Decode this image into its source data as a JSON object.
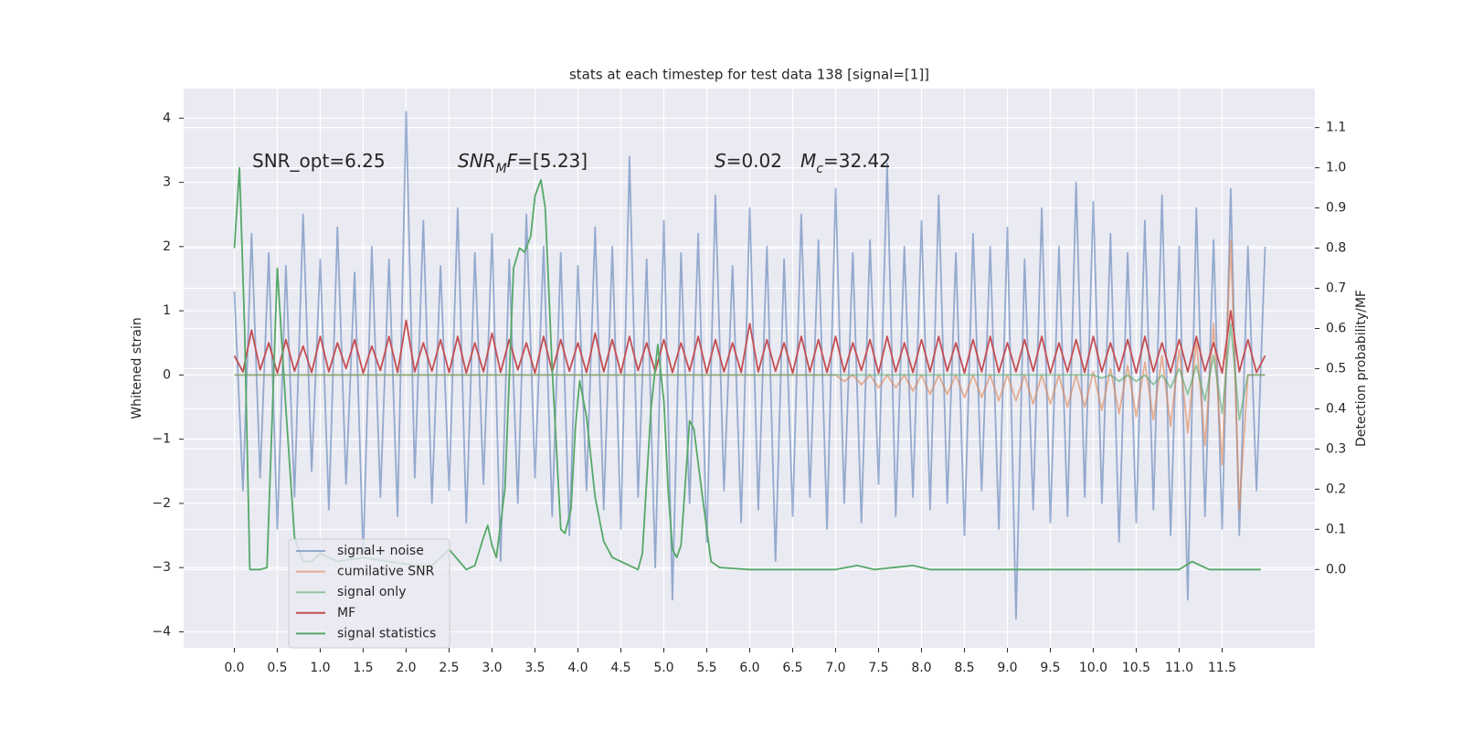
{
  "chart_data": {
    "type": "line",
    "title": "stats at each timestep for test data 138 [signal=[1]]",
    "ylabel": "Whitened strain",
    "y2label": "Detection probability/MF",
    "legend": "lower left",
    "grid": true,
    "annotations": [
      [
        {
          "text": "SNR_opt=6.25"
        }
      ],
      [
        {
          "text": "SNR",
          "italic": true
        },
        {
          "text": "M",
          "italic": true,
          "sub": true
        },
        {
          "text": "F",
          "italic": true
        },
        {
          "text": "=[5.23]"
        }
      ],
      [
        {
          "text": "S",
          "italic": true
        },
        {
          "text": "=0.02"
        }
      ],
      [
        {
          "text": "M",
          "italic": true
        },
        {
          "text": "c",
          "italic": true,
          "sub": true
        },
        {
          "text": "=32.42"
        }
      ]
    ],
    "xlim": [
      -0.59,
      12.58
    ],
    "ylim": [
      -4.25,
      4.46
    ],
    "y2lim": [
      -0.195,
      1.197
    ],
    "xticks": [
      {
        "value": 0,
        "label": "0.0"
      },
      {
        "value": 0.5,
        "label": "0.5"
      },
      {
        "value": 1,
        "label": "1.0"
      },
      {
        "value": 1.5,
        "label": "1.5"
      },
      {
        "value": 2,
        "label": "2.0"
      },
      {
        "value": 2.5,
        "label": "2.5"
      },
      {
        "value": 3,
        "label": "3.0"
      },
      {
        "value": 3.5,
        "label": "3.5"
      },
      {
        "value": 4,
        "label": "4.0"
      },
      {
        "value": 4.5,
        "label": "4.5"
      },
      {
        "value": 5,
        "label": "5.0"
      },
      {
        "value": 5.5,
        "label": "5.5"
      },
      {
        "value": 6,
        "label": "6.0"
      },
      {
        "value": 6.5,
        "label": "6.5"
      },
      {
        "value": 7,
        "label": "7.0"
      },
      {
        "value": 7.5,
        "label": "7.5"
      },
      {
        "value": 8,
        "label": "8.0"
      },
      {
        "value": 8.5,
        "label": "8.5"
      },
      {
        "value": 9,
        "label": "9.0"
      },
      {
        "value": 9.5,
        "label": "9.5"
      },
      {
        "value": 10,
        "label": "10.0"
      },
      {
        "value": 10.5,
        "label": "10.5"
      },
      {
        "value": 11,
        "label": "11.0"
      },
      {
        "value": 11.5,
        "label": "11.5"
      }
    ],
    "yticks": [
      {
        "value": -4,
        "label": "−4"
      },
      {
        "value": -3,
        "label": "−3"
      },
      {
        "value": -2,
        "label": "−2"
      },
      {
        "value": -1,
        "label": "−1"
      },
      0,
      1,
      2,
      3,
      4
    ],
    "y2ticks": [
      {
        "value": 0,
        "label": "0.0"
      },
      {
        "value": 0.1,
        "label": "0.1"
      },
      {
        "value": 0.2,
        "label": "0.2"
      },
      {
        "value": 0.3,
        "label": "0.3"
      },
      {
        "value": 0.4,
        "label": "0.4"
      },
      {
        "value": 0.5,
        "label": "0.5"
      },
      {
        "value": 0.6,
        "label": "0.6"
      },
      {
        "value": 0.7,
        "label": "0.7"
      },
      {
        "value": 0.8,
        "label": "0.8"
      },
      {
        "value": 0.9,
        "label": "0.9"
      },
      {
        "value": 1,
        "label": "1.0"
      },
      {
        "value": 1.1,
        "label": "1.1"
      }
    ],
    "x": [
      0,
      0.1,
      0.2,
      0.3,
      0.4,
      0.5,
      0.6,
      0.7,
      0.8,
      0.9,
      1,
      1.1,
      1.2,
      1.3,
      1.4,
      1.5,
      1.6,
      1.7,
      1.8,
      1.9,
      2,
      2.1,
      2.2,
      2.3,
      2.4,
      2.5,
      2.6,
      2.7,
      2.8,
      2.9,
      3,
      3.1,
      3.2,
      3.3,
      3.4,
      3.5,
      3.6,
      3.7,
      3.8,
      3.9,
      4,
      4.1,
      4.2,
      4.3,
      4.4,
      4.5,
      4.6,
      4.7,
      4.8,
      4.9,
      5,
      5.1,
      5.2,
      5.3,
      5.4,
      5.5,
      5.6,
      5.7,
      5.8,
      5.9,
      6,
      6.1,
      6.2,
      6.3,
      6.4,
      6.5,
      6.6,
      6.7,
      6.8,
      6.9,
      7,
      7.1,
      7.2,
      7.3,
      7.4,
      7.5,
      7.6,
      7.7,
      7.8,
      7.9,
      8,
      8.1,
      8.2,
      8.3,
      8.4,
      8.5,
      8.6,
      8.7,
      8.8,
      8.9,
      9,
      9.1,
      9.2,
      9.3,
      9.4,
      9.5,
      9.6,
      9.7,
      9.8,
      9.9,
      10,
      10.1,
      10.2,
      10.3,
      10.4,
      10.5,
      10.6,
      10.7,
      10.8,
      10.9,
      11,
      11.1,
      11.2,
      11.3,
      11.4,
      11.5,
      11.6,
      11.7,
      11.8,
      11.9,
      12
    ],
    "series": [
      {
        "name": "signal+ noise",
        "color": "#4c72b0",
        "opacity": 0.55,
        "values": [
          1.3,
          -1.8,
          2.2,
          -1.6,
          1.9,
          -2.4,
          1.7,
          -1.9,
          2.5,
          -1.5,
          1.8,
          -2.1,
          2.3,
          -1.7,
          1.6,
          -2.8,
          2.0,
          -1.9,
          1.8,
          -2.2,
          4.1,
          -1.6,
          2.4,
          -2.0,
          1.7,
          -1.8,
          2.6,
          -2.3,
          1.9,
          -1.7,
          2.2,
          -2.9,
          1.8,
          -2.0,
          2.5,
          -1.6,
          2.0,
          -2.2,
          1.9,
          -2.5,
          1.7,
          -1.8,
          2.3,
          -2.1,
          2.0,
          -2.4,
          3.4,
          -1.9,
          1.8,
          -3.0,
          2.4,
          -3.5,
          1.9,
          -2.0,
          2.2,
          -2.6,
          2.8,
          -1.8,
          1.7,
          -2.3,
          2.6,
          -2.1,
          2.0,
          -2.9,
          1.8,
          -2.2,
          2.5,
          -1.9,
          2.1,
          -2.4,
          2.9,
          -2.0,
          1.9,
          -2.3,
          2.1,
          -1.7,
          3.3,
          -2.2,
          2.0,
          -1.9,
          2.4,
          -2.1,
          2.8,
          -2.0,
          1.9,
          -2.5,
          2.2,
          -1.8,
          2.0,
          -2.4,
          2.3,
          -3.8,
          1.8,
          -2.1,
          2.6,
          -2.3,
          2.0,
          -2.2,
          3.0,
          -1.9,
          2.7,
          -2.0,
          2.2,
          -2.6,
          1.9,
          -2.3,
          2.4,
          -2.1,
          2.8,
          -2.5,
          2.0,
          -3.5,
          2.6,
          -2.2,
          2.1,
          -2.4,
          2.9,
          -2.5,
          2.0,
          -1.8,
          2.0
        ]
      },
      {
        "name": "cumilative SNR",
        "color": "#dd8452",
        "opacity": 0.6,
        "values": [
          0,
          0,
          0,
          0,
          0,
          0,
          0,
          0,
          0,
          0,
          0,
          0,
          0,
          0,
          0,
          0,
          0,
          0,
          0,
          0,
          0,
          0,
          0,
          0,
          0,
          0,
          0,
          0,
          0,
          0,
          0,
          0,
          0,
          0,
          0,
          0,
          0,
          0,
          0,
          0,
          0,
          0,
          0,
          0,
          0,
          0,
          0,
          0,
          0,
          0,
          0,
          0,
          0,
          0,
          0,
          0,
          0,
          0,
          0,
          0,
          0,
          0,
          0,
          0,
          0,
          0,
          0,
          0,
          0,
          0,
          0,
          -0.1,
          0,
          -0.15,
          0,
          -0.2,
          0,
          -0.2,
          0,
          -0.25,
          0,
          -0.3,
          0,
          -0.3,
          0,
          -0.35,
          0,
          -0.35,
          0,
          -0.4,
          0,
          -0.4,
          0,
          -0.45,
          0,
          -0.45,
          0,
          -0.5,
          0,
          -0.5,
          0.05,
          -0.55,
          0.1,
          -0.6,
          0.15,
          -0.65,
          0.2,
          -0.7,
          0.3,
          -0.8,
          0.4,
          -0.9,
          0.55,
          -1.1,
          0.8,
          -1.4,
          2.1,
          -2.1,
          0,
          0,
          0
        ]
      },
      {
        "name": "signal only",
        "color": "#55a868",
        "opacity": 0.6,
        "values": [
          0,
          0,
          0,
          0,
          0,
          0,
          0,
          0,
          0,
          0,
          0,
          0,
          0,
          0,
          0,
          0,
          0,
          0,
          0,
          0,
          0,
          0,
          0,
          0,
          0,
          0,
          0,
          0,
          0,
          0,
          0,
          0,
          0,
          0,
          0,
          0,
          0,
          0,
          0,
          0,
          0,
          0,
          0,
          0,
          0,
          0,
          0,
          0,
          0,
          0,
          0,
          0,
          0,
          0,
          0,
          0,
          0,
          0,
          0,
          0,
          0,
          0,
          0,
          0,
          0,
          0,
          0,
          0,
          0,
          0,
          0,
          0,
          0,
          0,
          0,
          0,
          0,
          0,
          0,
          0,
          0,
          0,
          0,
          0,
          0,
          0,
          0,
          0,
          0,
          0,
          0,
          0,
          0,
          0,
          0,
          0,
          0,
          0,
          0,
          0,
          0,
          -0.05,
          0,
          -0.1,
          0,
          -0.1,
          0,
          -0.15,
          0,
          -0.2,
          0.1,
          -0.3,
          0.15,
          -0.4,
          0.3,
          -0.6,
          0.8,
          -0.7,
          0,
          0,
          0
        ]
      },
      {
        "name": "MF",
        "color": "#c44e52",
        "opacity": 1,
        "values": [
          0.3,
          0.05,
          0.7,
          0.08,
          0.5,
          0.03,
          0.55,
          0.06,
          0.45,
          0.04,
          0.6,
          0.05,
          0.5,
          0.1,
          0.55,
          0.03,
          0.45,
          0.07,
          0.6,
          0.04,
          0.85,
          0.05,
          0.5,
          0.06,
          0.55,
          0.04,
          0.6,
          0.03,
          0.5,
          0.05,
          0.65,
          0.04,
          0.55,
          0.08,
          0.5,
          0.03,
          0.6,
          0.05,
          0.55,
          0.06,
          0.5,
          0.04,
          0.65,
          0.05,
          0.55,
          0.03,
          0.6,
          0.07,
          0.5,
          0.05,
          0.55,
          0.04,
          0.5,
          0.06,
          0.6,
          0.03,
          0.55,
          0.05,
          0.5,
          0.04,
          0.8,
          0.05,
          0.55,
          0.06,
          0.5,
          0.03,
          0.6,
          0.05,
          0.55,
          0.04,
          0.6,
          0.05,
          0.5,
          0.07,
          0.55,
          0.03,
          0.6,
          0.05,
          0.5,
          0.04,
          0.55,
          0.05,
          0.6,
          0.06,
          0.5,
          0.03,
          0.55,
          0.05,
          0.6,
          0.04,
          0.5,
          0.05,
          0.55,
          0.06,
          0.6,
          0.03,
          0.5,
          0.05,
          0.55,
          0.04,
          0.6,
          0.05,
          0.5,
          0.06,
          0.55,
          0.03,
          0.6,
          0.05,
          0.5,
          0.04,
          0.55,
          0.05,
          0.6,
          0.06,
          0.5,
          0.03,
          1.0,
          0.05,
          0.55,
          0.04,
          0.3
        ]
      },
      {
        "name": "signal statistics",
        "color": "#55a868",
        "opacity": 1,
        "axis": "y2",
        "x": [
          0,
          0.06,
          0.12,
          0.18,
          0.3,
          0.38,
          0.5,
          0.6,
          0.7,
          0.8,
          0.9,
          1.0,
          1.1,
          1.2,
          1.5,
          1.8,
          2.1,
          2.3,
          2.5,
          2.7,
          2.8,
          2.9,
          2.95,
          3.0,
          3.05,
          3.15,
          3.25,
          3.32,
          3.38,
          3.45,
          3.5,
          3.57,
          3.62,
          3.7,
          3.8,
          3.85,
          3.92,
          3.97,
          4.02,
          4.1,
          4.2,
          4.3,
          4.4,
          4.6,
          4.7,
          4.75,
          4.85,
          4.93,
          5.0,
          5.05,
          5.1,
          5.15,
          5.2,
          5.3,
          5.35,
          5.45,
          5.55,
          5.65,
          6.0,
          7.0,
          7.25,
          7.45,
          7.9,
          8.1,
          8.5,
          9.9,
          10.5,
          11.0,
          11.15,
          11.25,
          11.35,
          11.95
        ],
        "values": [
          0.8,
          1.0,
          0.6,
          0.0,
          0.0,
          0.005,
          0.75,
          0.4,
          0.08,
          0.02,
          0.02,
          0.04,
          0.03,
          0.02,
          0.03,
          0.02,
          0.01,
          0.01,
          0.05,
          0.0,
          0.01,
          0.08,
          0.11,
          0.06,
          0.03,
          0.2,
          0.75,
          0.8,
          0.79,
          0.83,
          0.93,
          0.97,
          0.9,
          0.5,
          0.1,
          0.09,
          0.15,
          0.35,
          0.47,
          0.38,
          0.18,
          0.07,
          0.03,
          0.01,
          0.0,
          0.04,
          0.4,
          0.56,
          0.42,
          0.2,
          0.05,
          0.03,
          0.06,
          0.37,
          0.35,
          0.18,
          0.02,
          0.005,
          0.0,
          0.0,
          0.01,
          0.0,
          0.01,
          0.0,
          0.0,
          0.0,
          0.0,
          0.0,
          0.02,
          0.01,
          0.0,
          0.0
        ]
      }
    ]
  }
}
